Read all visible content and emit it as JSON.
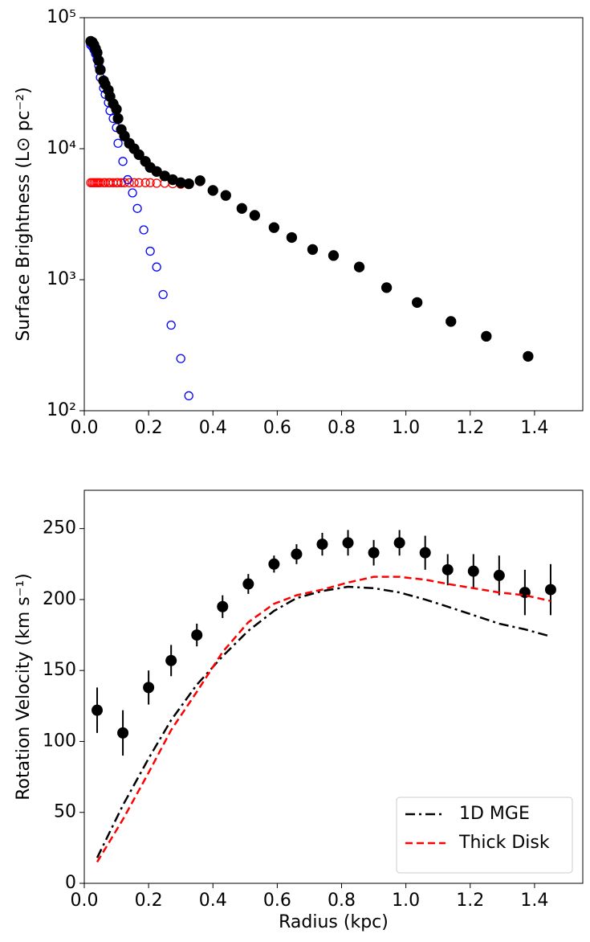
{
  "chart_data": [
    {
      "type": "scatter",
      "ylabel": "Surface Brightness (L⊙ pc⁻²)",
      "log_y": true,
      "xlim": [
        0,
        1.55
      ],
      "ylim": [
        100,
        100000
      ],
      "xticks": [
        {
          "value": 0,
          "label": "0.0"
        },
        {
          "value": 0.2,
          "label": "0.2"
        },
        {
          "value": 0.4,
          "label": "0.4"
        },
        {
          "value": 0.6,
          "label": "0.6"
        },
        {
          "value": 0.8,
          "label": "0.8"
        },
        {
          "value": 1.0,
          "label": "1.0"
        },
        {
          "value": 1.2,
          "label": "1.2"
        },
        {
          "value": 1.4,
          "label": "1.4"
        }
      ],
      "yticks": [
        {
          "value": 100,
          "label": "10²"
        },
        {
          "value": 1000,
          "label": "10³"
        },
        {
          "value": 10000,
          "label": "10⁴"
        },
        {
          "value": 100000,
          "label": "10⁵"
        }
      ],
      "series": [
        {
          "color": "#ff0000",
          "filled": false,
          "x": [
            0.02,
            0.025,
            0.03,
            0.035,
            0.04,
            0.045,
            0.05,
            0.06,
            0.065,
            0.075,
            0.08,
            0.09,
            0.1,
            0.105,
            0.115,
            0.125,
            0.14,
            0.155,
            0.17,
            0.19,
            0.205,
            0.225,
            0.25,
            0.275,
            0.3,
            0.325,
            0.36,
            0.4,
            0.44,
            0.49,
            0.53,
            0.59,
            0.645,
            0.71,
            0.775,
            0.855,
            0.94,
            1.035,
            1.14,
            1.25,
            1.38
          ],
          "values": [
            5500,
            5500,
            5500,
            5500,
            5500,
            5500,
            5500,
            5500,
            5500,
            5500,
            5500,
            5500,
            5500,
            5500,
            5500,
            5500,
            5500,
            5500,
            5500,
            5500,
            5500,
            5450,
            5450,
            5400,
            5350,
            5350,
            5600,
            4800,
            4400,
            3500,
            3100,
            2500,
            2100,
            1700,
            1530,
            1250,
            870,
            670,
            480,
            370,
            260
          ]
        },
        {
          "color": "#0000ff",
          "filled": false,
          "x": [
            0.02,
            0.025,
            0.03,
            0.035,
            0.04,
            0.045,
            0.05,
            0.06,
            0.065,
            0.075,
            0.08,
            0.09,
            0.1,
            0.105,
            0.12,
            0.135,
            0.15,
            0.165,
            0.185,
            0.205,
            0.225,
            0.245,
            0.27,
            0.3,
            0.325
          ],
          "values": [
            62000,
            60000,
            57000,
            53000,
            48000,
            43000,
            35000,
            29000,
            26000,
            22500,
            19500,
            17000,
            14500,
            11000,
            8000,
            5800,
            4600,
            3500,
            2400,
            1650,
            1250,
            770,
            450,
            250,
            130
          ]
        },
        {
          "color": "#000000",
          "filled": true,
          "x": [
            0.02,
            0.025,
            0.03,
            0.035,
            0.04,
            0.045,
            0.05,
            0.06,
            0.065,
            0.075,
            0.08,
            0.09,
            0.1,
            0.105,
            0.115,
            0.125,
            0.14,
            0.155,
            0.17,
            0.19,
            0.205,
            0.225,
            0.25,
            0.275,
            0.3,
            0.325,
            0.36,
            0.4,
            0.44,
            0.49,
            0.53,
            0.59,
            0.645,
            0.71,
            0.775,
            0.855,
            0.94,
            1.035,
            1.14,
            1.25,
            1.38
          ],
          "values": [
            66000,
            65000,
            62000,
            58000,
            54000,
            47000,
            40000,
            33000,
            31000,
            28000,
            25000,
            22000,
            20000,
            17000,
            14000,
            12500,
            11000,
            10000,
            9000,
            8000,
            7200,
            6700,
            6200,
            5800,
            5500,
            5400,
            5700,
            4800,
            4400,
            3500,
            3100,
            2500,
            2100,
            1700,
            1530,
            1250,
            870,
            670,
            480,
            370,
            260
          ]
        }
      ]
    },
    {
      "type": "line",
      "xlabel": "Radius (kpc)",
      "ylabel": "Rotation Velocity (km s⁻¹)",
      "legend": "lower right",
      "xlim": [
        0,
        1.55
      ],
      "ylim": [
        0,
        277
      ],
      "xticks": [
        {
          "value": 0,
          "label": "0.0"
        },
        {
          "value": 0.2,
          "label": "0.2"
        },
        {
          "value": 0.4,
          "label": "0.4"
        },
        {
          "value": 0.6,
          "label": "0.6"
        },
        {
          "value": 0.8,
          "label": "0.8"
        },
        {
          "value": 1.0,
          "label": "1.0"
        },
        {
          "value": 1.2,
          "label": "1.2"
        },
        {
          "value": 1.4,
          "label": "1.4"
        }
      ],
      "yticks": [
        0,
        50,
        100,
        150,
        200,
        250
      ],
      "series": [
        {
          "kind": "errorbar",
          "color": "#000000",
          "x": [
            0.04,
            0.12,
            0.2,
            0.27,
            0.35,
            0.43,
            0.51,
            0.59,
            0.66,
            0.74,
            0.82,
            0.9,
            0.98,
            1.06,
            1.13,
            1.21,
            1.29,
            1.37,
            1.45
          ],
          "values": [
            122,
            106,
            138,
            157,
            175,
            195,
            211,
            225,
            232,
            239,
            240,
            233,
            240,
            233,
            221,
            220,
            217,
            205,
            207
          ],
          "errors": [
            16,
            16,
            12,
            11,
            8,
            8,
            7,
            6,
            7,
            8,
            9,
            9,
            9,
            12,
            11,
            12,
            14,
            16,
            18
          ]
        },
        {
          "kind": "line",
          "name": "1D MGE",
          "color": "#000000",
          "linestyle": "dashdot",
          "x": [
            0.04,
            0.12,
            0.2,
            0.27,
            0.35,
            0.43,
            0.51,
            0.59,
            0.66,
            0.74,
            0.82,
            0.9,
            0.98,
            1.06,
            1.13,
            1.21,
            1.29,
            1.37,
            1.45
          ],
          "values": [
            18,
            55,
            88,
            115,
            140,
            160,
            178,
            192,
            201,
            206,
            209,
            208,
            205,
            200,
            195,
            189,
            183,
            179,
            174
          ]
        },
        {
          "kind": "line",
          "name": "Thick Disk",
          "color": "#ff0000",
          "linestyle": "dashed",
          "x": [
            0.04,
            0.12,
            0.2,
            0.27,
            0.35,
            0.43,
            0.51,
            0.59,
            0.66,
            0.74,
            0.82,
            0.9,
            0.98,
            1.06,
            1.13,
            1.21,
            1.29,
            1.37,
            1.45
          ],
          "values": [
            15,
            45,
            78,
            108,
            135,
            163,
            184,
            197,
            203,
            207,
            212,
            216,
            216,
            214,
            211,
            208,
            205,
            203,
            199
          ]
        }
      ]
    }
  ]
}
